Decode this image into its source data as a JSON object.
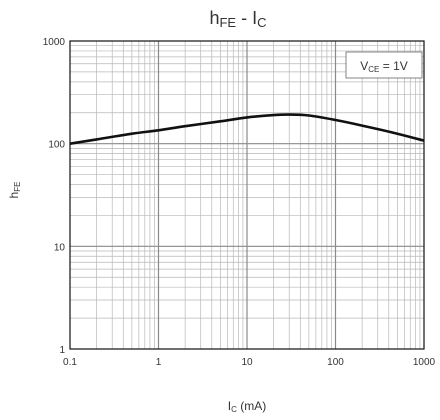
{
  "chart_data": {
    "type": "line",
    "title": {
      "main": "h",
      "main_sub": "FE",
      "sep": " - ",
      "main2": "I",
      "main2_sub": "C"
    },
    "xlabel": {
      "main": "I",
      "sub": "C",
      "unit": " (mA)"
    },
    "ylabel": {
      "main": "h",
      "sub": "FE"
    },
    "annotation": {
      "main": "V",
      "sub": "CE",
      "rest": " = 1V"
    },
    "x_scale": "log",
    "y_scale": "log",
    "xlim": [
      0.1,
      1000
    ],
    "ylim": [
      1,
      1000
    ],
    "x_ticks": [
      "0.1",
      "1",
      "10",
      "100",
      "1000"
    ],
    "y_ticks": [
      "1",
      "10",
      "100",
      "1000"
    ],
    "grid": true,
    "series": [
      {
        "x": [
          0.1,
          0.2,
          0.5,
          1,
          2,
          5,
          10,
          20,
          30,
          50,
          100,
          200,
          500,
          1000
        ],
        "y": [
          100,
          110,
          125,
          135,
          148,
          165,
          180,
          190,
          192,
          188,
          170,
          150,
          125,
          107
        ]
      }
    ]
  }
}
